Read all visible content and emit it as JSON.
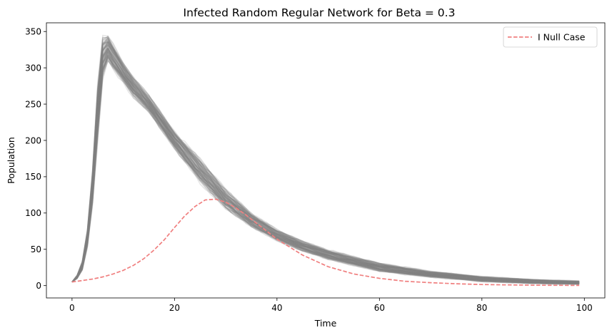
{
  "chart_data": {
    "type": "line",
    "title": "Infected Random Regular Network for Beta = 0.3",
    "xlabel": "Time",
    "ylabel": "Population",
    "xlim": [
      -5,
      104
    ],
    "ylim": [
      -17,
      362
    ],
    "xticks": [
      0,
      20,
      40,
      60,
      80,
      100
    ],
    "yticks": [
      0,
      50,
      100,
      150,
      200,
      250,
      300,
      350
    ],
    "grid": false,
    "legend": {
      "placement": "top-right",
      "entries": [
        "I Null Case"
      ]
    },
    "colors": {
      "simulation": "#808080",
      "null_case": "#f08080"
    },
    "simulation_runs": {
      "count": 100,
      "representation": "overlaid grey semi-transparent lines, one per simulation run",
      "band": {
        "x": [
          0,
          1,
          2,
          3,
          4,
          5,
          6,
          7,
          8,
          10,
          12,
          15,
          20,
          25,
          30,
          35,
          40,
          45,
          50,
          60,
          70,
          80,
          90,
          99
        ],
        "low": [
          5,
          10,
          22,
          55,
          115,
          205,
          290,
          312,
          300,
          282,
          262,
          240,
          190,
          145,
          107,
          82,
          63,
          48,
          37,
          20,
          12,
          6,
          3,
          2
        ],
        "high": [
          5,
          14,
          32,
          75,
          155,
          268,
          338,
          342,
          330,
          305,
          285,
          260,
          210,
          172,
          130,
          98,
          76,
          60,
          48,
          30,
          19,
          12,
          8,
          6
        ]
      }
    },
    "series": [
      {
        "name": "I Null Case",
        "style": "dashed",
        "x": [
          0,
          2,
          4,
          6,
          8,
          10,
          12,
          14,
          16,
          18,
          20,
          22,
          24,
          26,
          28,
          30,
          32,
          34,
          36,
          38,
          40,
          45,
          50,
          55,
          60,
          65,
          70,
          75,
          80,
          85,
          90,
          95,
          99
        ],
        "y": [
          5,
          7,
          9,
          12,
          16,
          21,
          28,
          37,
          49,
          63,
          80,
          96,
          109,
          118,
          119,
          115,
          107,
          97,
          86,
          75,
          64,
          42,
          26,
          16,
          10,
          6,
          4,
          2.5,
          1.5,
          1,
          0.6,
          0.4,
          0.3
        ]
      }
    ]
  }
}
